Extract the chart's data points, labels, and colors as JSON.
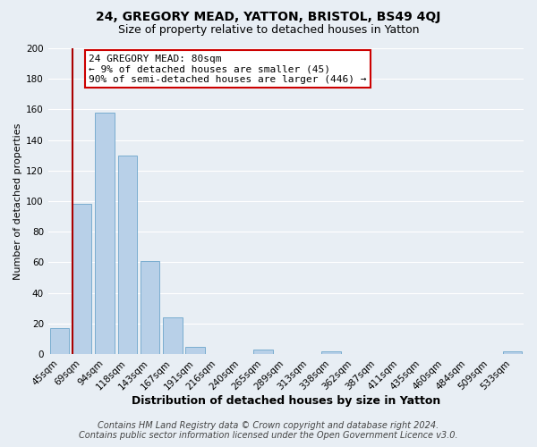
{
  "title": "24, GREGORY MEAD, YATTON, BRISTOL, BS49 4QJ",
  "subtitle": "Size of property relative to detached houses in Yatton",
  "xlabel": "Distribution of detached houses by size in Yatton",
  "ylabel": "Number of detached properties",
  "bar_labels": [
    "45sqm",
    "69sqm",
    "94sqm",
    "118sqm",
    "143sqm",
    "167sqm",
    "191sqm",
    "216sqm",
    "240sqm",
    "265sqm",
    "289sqm",
    "313sqm",
    "338sqm",
    "362sqm",
    "387sqm",
    "411sqm",
    "435sqm",
    "460sqm",
    "484sqm",
    "509sqm",
    "533sqm"
  ],
  "bar_values": [
    17,
    98,
    158,
    130,
    61,
    24,
    5,
    0,
    0,
    3,
    0,
    0,
    2,
    0,
    0,
    0,
    0,
    0,
    0,
    0,
    2
  ],
  "bar_color": "#b8d0e8",
  "bar_edge_color": "#7aadd0",
  "vline_color": "#aa0000",
  "ylim": [
    0,
    200
  ],
  "yticks": [
    0,
    20,
    40,
    60,
    80,
    100,
    120,
    140,
    160,
    180,
    200
  ],
  "annotation_title": "24 GREGORY MEAD: 80sqm",
  "annotation_line1": "← 9% of detached houses are smaller (45)",
  "annotation_line2": "90% of semi-detached houses are larger (446) →",
  "annotation_box_color": "#ffffff",
  "annotation_box_edge": "#cc0000",
  "footer1": "Contains HM Land Registry data © Crown copyright and database right 2024.",
  "footer2": "Contains public sector information licensed under the Open Government Licence v3.0.",
  "bg_color": "#e8eef4",
  "grid_color": "#ffffff",
  "title_fontsize": 10,
  "subtitle_fontsize": 9,
  "xlabel_fontsize": 9,
  "ylabel_fontsize": 8,
  "tick_fontsize": 7.5,
  "footer_fontsize": 7,
  "annotation_fontsize": 8,
  "vline_bar_index": 1
}
